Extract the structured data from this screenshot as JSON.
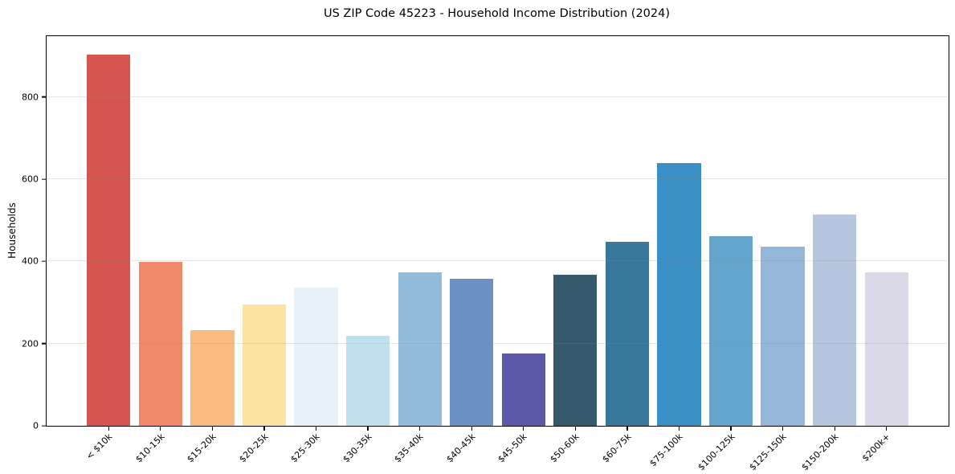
{
  "title": "US ZIP Code 45223 - Household Income Distribution (2024)",
  "chart_data": {
    "type": "bar",
    "title": "US ZIP Code 45223 - Household Income Distribution (2024)",
    "xlabel": "",
    "ylabel": "Households",
    "categories": [
      "< $10k",
      "$10-15k",
      "$15-20k",
      "$20-25k",
      "$25-30k",
      "$30-35k",
      "$35-40k",
      "$40-45k",
      "$45-50k",
      "$50-60k",
      "$60-75k",
      "$75-100k",
      "$100-125k",
      "$125-150k",
      "$150-200k",
      "$200k+"
    ],
    "values": [
      903,
      398,
      232,
      295,
      337,
      218,
      373,
      357,
      175,
      367,
      447,
      640,
      462,
      435,
      515,
      374
    ],
    "bar_colors": [
      "#d6564f",
      "#f1896a",
      "#f9bb80",
      "#fde3a1",
      "#e7f1f7",
      "#bfe0ec",
      "#92bbdc",
      "#6b90c4",
      "#5c5aa8",
      "#365a6c",
      "#38799b",
      "#3a90c5",
      "#64a5cd",
      "#94b6d9",
      "#b7c7e0",
      "#d9d9e8"
    ],
    "ylim": [
      0,
      948
    ],
    "yticks": [
      0,
      200,
      400,
      600,
      800
    ],
    "xtick_rotation_deg": 45,
    "grid": "horizontal",
    "legend": "none",
    "frame": "full-box",
    "background_color": "#ffffff",
    "spine_color": "#000000",
    "gridline_color": "#e9e9e9"
  }
}
